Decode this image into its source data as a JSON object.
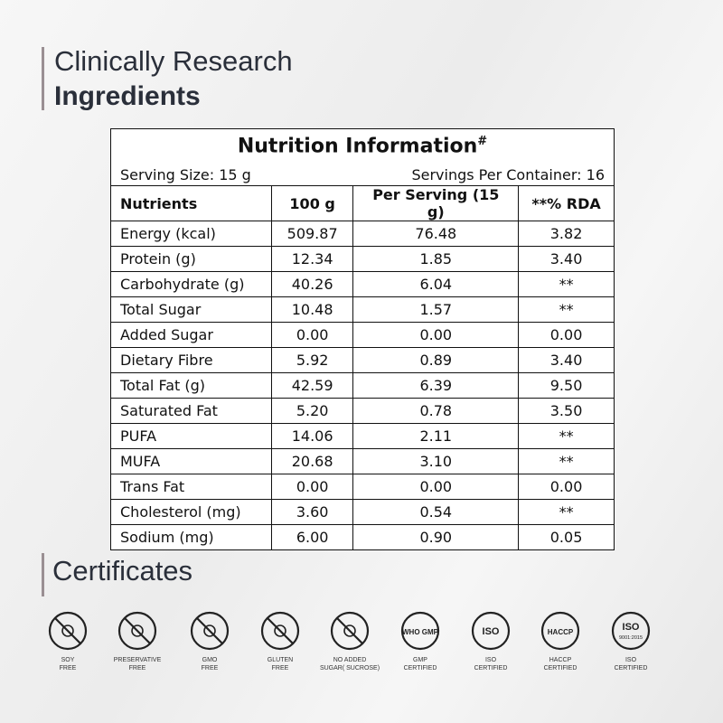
{
  "heading": {
    "line1": "Clinically Research",
    "line2": "Ingredients"
  },
  "table": {
    "title": "Nutrition Information",
    "title_mark": "#",
    "serving_size": "Serving Size: 15 g",
    "servings_per_container": "Servings Per Container: 16",
    "columns": [
      "Nutrients",
      "100 g",
      "Per Serving (15 g)",
      "**% RDA"
    ],
    "rows": [
      [
        "Energy (kcal)",
        "509.87",
        "76.48",
        "3.82"
      ],
      [
        "Protein (g)",
        "12.34",
        "1.85",
        "3.40"
      ],
      [
        "Carbohydrate (g)",
        "40.26",
        "6.04",
        "**"
      ],
      [
        "Total Sugar",
        "10.48",
        "1.57",
        "**"
      ],
      [
        "Added Sugar",
        "0.00",
        "0.00",
        "0.00"
      ],
      [
        "Dietary Fibre",
        "5.92",
        "0.89",
        "3.40"
      ],
      [
        "Total Fat (g)",
        "42.59",
        "6.39",
        "9.50"
      ],
      [
        "Saturated Fat",
        "5.20",
        "0.78",
        "3.50"
      ],
      [
        "PUFA",
        "14.06",
        "2.11",
        "**"
      ],
      [
        "MUFA",
        "20.68",
        "3.10",
        "**"
      ],
      [
        "Trans Fat",
        "0.00",
        "0.00",
        "0.00"
      ],
      [
        "Cholesterol (mg)",
        "3.60",
        "0.54",
        "**"
      ],
      [
        "Sodium (mg)",
        "6.00",
        "0.90",
        "0.05"
      ]
    ]
  },
  "certificates": {
    "title": "Certificates",
    "items": [
      {
        "label": [
          "SOY",
          "FREE"
        ]
      },
      {
        "label": [
          "PRESERVATIVE",
          "FREE"
        ]
      },
      {
        "label": [
          "GMO",
          "FREE"
        ]
      },
      {
        "label": [
          "GLUTEN",
          "FREE"
        ]
      },
      {
        "label": [
          "NO ADDED",
          "SUGAR( SUCROSE)"
        ]
      },
      {
        "badge": "WHO GMP",
        "label": [
          "GMP",
          "CERTIFIED"
        ]
      },
      {
        "badge": "ISO",
        "label": [
          "ISO",
          "CERTIFIED"
        ]
      },
      {
        "badge": "HACCP",
        "label": [
          "HACCP",
          "CERTIFIED"
        ]
      },
      {
        "badge": "ISO",
        "badge_sub": "9001:2015",
        "label": [
          "ISO",
          "CERTIFIED"
        ]
      }
    ]
  }
}
